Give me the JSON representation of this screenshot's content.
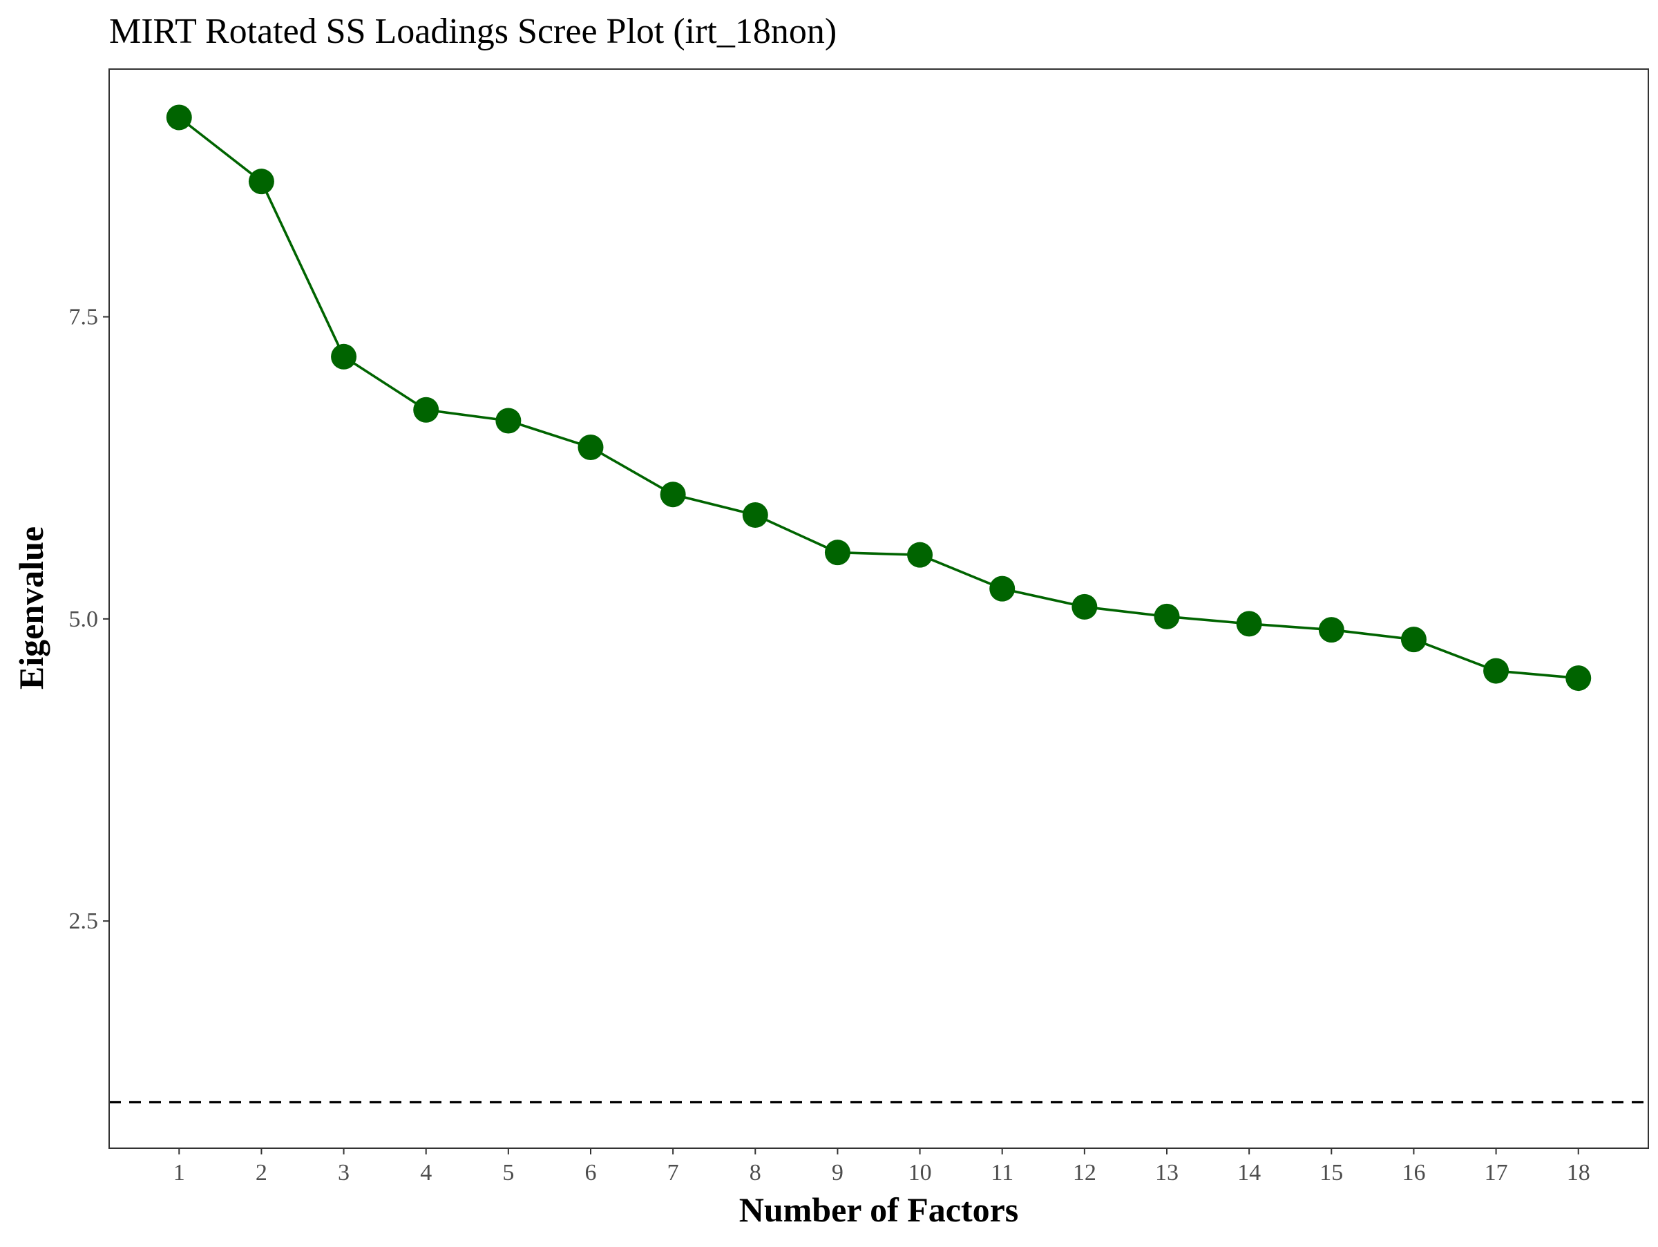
{
  "chart_data": {
    "type": "line",
    "title": "MIRT Rotated SS Loadings Scree Plot (irt_18non)",
    "xlabel": "Number of Factors",
    "ylabel": "Eigenvalue",
    "x": [
      1,
      2,
      3,
      4,
      5,
      6,
      7,
      8,
      9,
      10,
      11,
      12,
      13,
      14,
      15,
      16,
      17,
      18
    ],
    "series": [
      {
        "values": [
          9.15,
          8.62,
          7.17,
          6.73,
          6.64,
          6.42,
          6.03,
          5.86,
          5.55,
          5.53,
          5.25,
          5.1,
          5.02,
          4.96,
          4.91,
          4.83,
          4.57,
          4.51
        ]
      }
    ],
    "reference_line": {
      "y": 1,
      "style": "dashed",
      "color": "#000000"
    },
    "ylim": [
      0.62,
      9.55
    ],
    "xlim": [
      0.15,
      18.85
    ],
    "y_ticks": [
      "2.5",
      "5.0",
      "7.5"
    ],
    "x_ticks": [
      "1",
      "2",
      "3",
      "4",
      "5",
      "6",
      "7",
      "8",
      "9",
      "10",
      "11",
      "12",
      "13",
      "14",
      "15",
      "16",
      "17",
      "18"
    ],
    "grid": false,
    "colors": {
      "series": "#006400",
      "frame": "#333333",
      "tick_label": "#4d4d4d"
    }
  }
}
